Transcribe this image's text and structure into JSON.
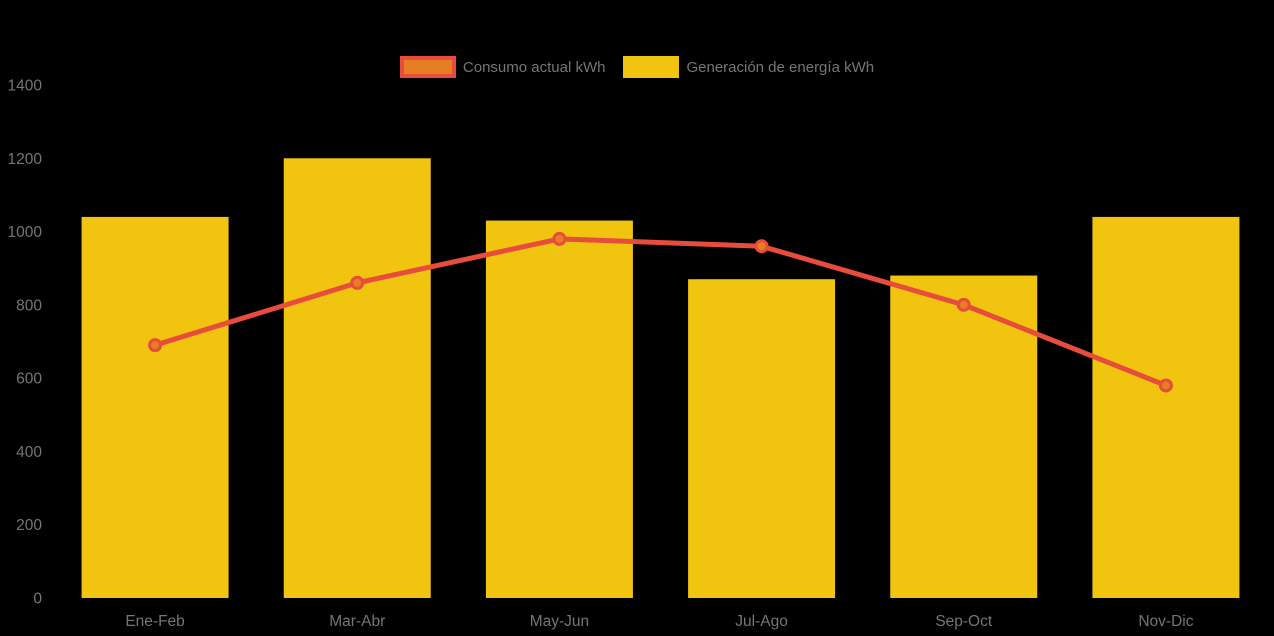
{
  "chart_data": {
    "type": "bar",
    "subtype": "bar-with-line-overlay",
    "title": "",
    "categories": [
      "Ene-Feb",
      "Mar-Abr",
      "May-Jun",
      "Jul-Ago",
      "Sep-Oct",
      "Nov-Dic"
    ],
    "series": [
      {
        "name": "Consumo actual kWh",
        "type": "line",
        "values": [
          690,
          860,
          980,
          960,
          800,
          580
        ],
        "color": "#e74c3c",
        "marker_fill": "#e67e22"
      },
      {
        "name": "Generación de energía kWh",
        "type": "bar",
        "values": [
          1040,
          1200,
          1030,
          870,
          880,
          1040
        ],
        "color": "#f1c40f"
      }
    ],
    "xlabel": "",
    "ylabel": "",
    "ylim": [
      0,
      1400
    ],
    "yticks": [
      0,
      200,
      400,
      600,
      800,
      1000,
      1200,
      1400
    ],
    "grid": false,
    "legend_position": "top",
    "axis_label_color": "#757575",
    "background_color": "#000000"
  }
}
